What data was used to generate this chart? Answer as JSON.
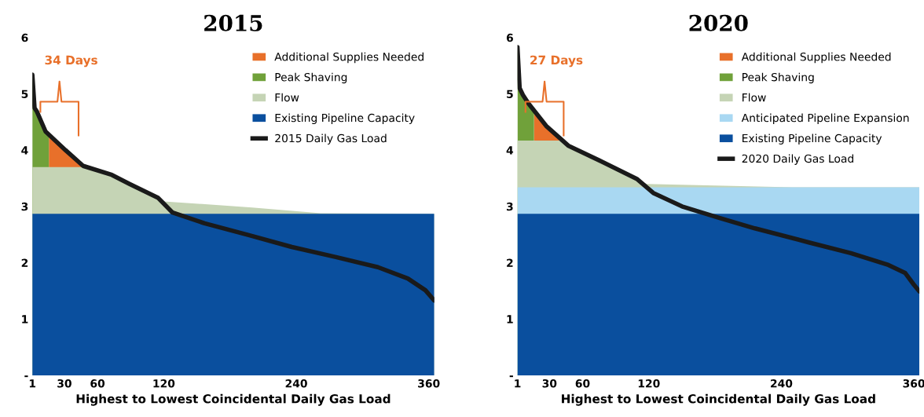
{
  "chart_data": [
    {
      "type": "area",
      "title": "2015",
      "xlabel": "Highest to Lowest Coincidental Daily Gas Load",
      "annotations": [
        "34 Days"
      ],
      "xlim": [
        1,
        365
      ],
      "ylim": [
        0,
        6
      ],
      "xticks": [
        1,
        30,
        60,
        120,
        240,
        360
      ],
      "yticks": [
        {
          "value": 0,
          "label": "-"
        },
        1,
        2,
        3,
        4,
        5,
        6
      ],
      "grid": false,
      "legend": "top right",
      "series": [
        {
          "name": "Additional Supplies Needed",
          "color": "#e8702a",
          "x": [
            16,
            31,
            47
          ],
          "values": [
            4.25,
            4.0,
            3.72
          ]
        },
        {
          "name": "Peak Shaving",
          "color": "#70a13a",
          "x": [
            1,
            3,
            5,
            13,
            16
          ],
          "values": [
            5.34,
            4.75,
            4.69,
            4.33,
            4.25
          ]
        },
        {
          "name": "Flow",
          "color": "#c5d4b5",
          "x": [
            1,
            47,
            73,
            89,
            115,
            120,
            200,
            262,
            365
          ],
          "values": [
            3.7,
            3.7,
            3.56,
            3.4,
            3.15,
            3.09,
            2.98,
            2.88,
            2.87
          ]
        },
        {
          "name": "Existing Pipeline Capacity",
          "color": "#0a4f9e",
          "x": [
            1,
            365
          ],
          "values": [
            2.87,
            2.87
          ]
        },
        {
          "name": "2015 Daily Gas Load",
          "type": "line",
          "color": "#1a1a1a",
          "x": [
            1,
            3,
            5,
            13,
            31,
            47,
            73,
            89,
            115,
            128,
            157,
            197,
            236,
            276,
            314,
            341,
            357,
            365
          ],
          "values": [
            5.34,
            4.75,
            4.69,
            4.33,
            4.0,
            3.72,
            3.56,
            3.4,
            3.15,
            2.89,
            2.7,
            2.49,
            2.28,
            2.1,
            1.92,
            1.72,
            1.51,
            1.33
          ]
        }
      ]
    },
    {
      "type": "area",
      "title": "2020",
      "xlabel": "Highest to Lowest Coincidental Daily Gas Load",
      "annotations": [
        "27 Days"
      ],
      "xlim": [
        1,
        365
      ],
      "ylim": [
        0,
        6
      ],
      "xticks": [
        1,
        30,
        60,
        120,
        240,
        360
      ],
      "yticks": [
        {
          "value": 0,
          "label": "-"
        },
        1,
        2,
        3,
        4,
        5,
        6
      ],
      "grid": false,
      "legend": "top right",
      "series": [
        {
          "name": "Additional Supplies Needed",
          "color": "#e8702a",
          "x": [
            16,
            27,
            39
          ],
          "values": [
            4.7,
            4.43,
            4.17
          ]
        },
        {
          "name": "Peak Shaving",
          "color": "#70a13a",
          "x": [
            1,
            3,
            6,
            11,
            16
          ],
          "values": [
            5.83,
            5.1,
            4.98,
            4.83,
            4.7
          ]
        },
        {
          "name": "Flow",
          "color": "#c5d4b5",
          "x": [
            1,
            39,
            47,
            78,
            109,
            118,
            250,
            365
          ],
          "values": [
            4.17,
            4.17,
            4.08,
            3.79,
            3.49,
            3.4,
            3.34,
            3.34
          ]
        },
        {
          "name": "Anticipated Pipeline Expansion",
          "color": "#a9d8f2",
          "x": [
            1,
            365
          ],
          "values": [
            3.34,
            3.34
          ]
        },
        {
          "name": "Existing Pipeline Capacity",
          "color": "#0a4f9e",
          "x": [
            1,
            365
          ],
          "values": [
            2.87,
            2.87
          ]
        },
        {
          "name": "2020 Daily Gas Load",
          "type": "line",
          "color": "#1a1a1a",
          "x": [
            1,
            3,
            6,
            11,
            27,
            47,
            78,
            109,
            124,
            150,
            183,
            216,
            265,
            303,
            337,
            352,
            360,
            365
          ],
          "values": [
            5.83,
            5.1,
            4.98,
            4.83,
            4.43,
            4.08,
            3.79,
            3.49,
            3.24,
            3.0,
            2.8,
            2.61,
            2.36,
            2.17,
            1.96,
            1.82,
            1.61,
            1.49
          ]
        }
      ]
    }
  ]
}
